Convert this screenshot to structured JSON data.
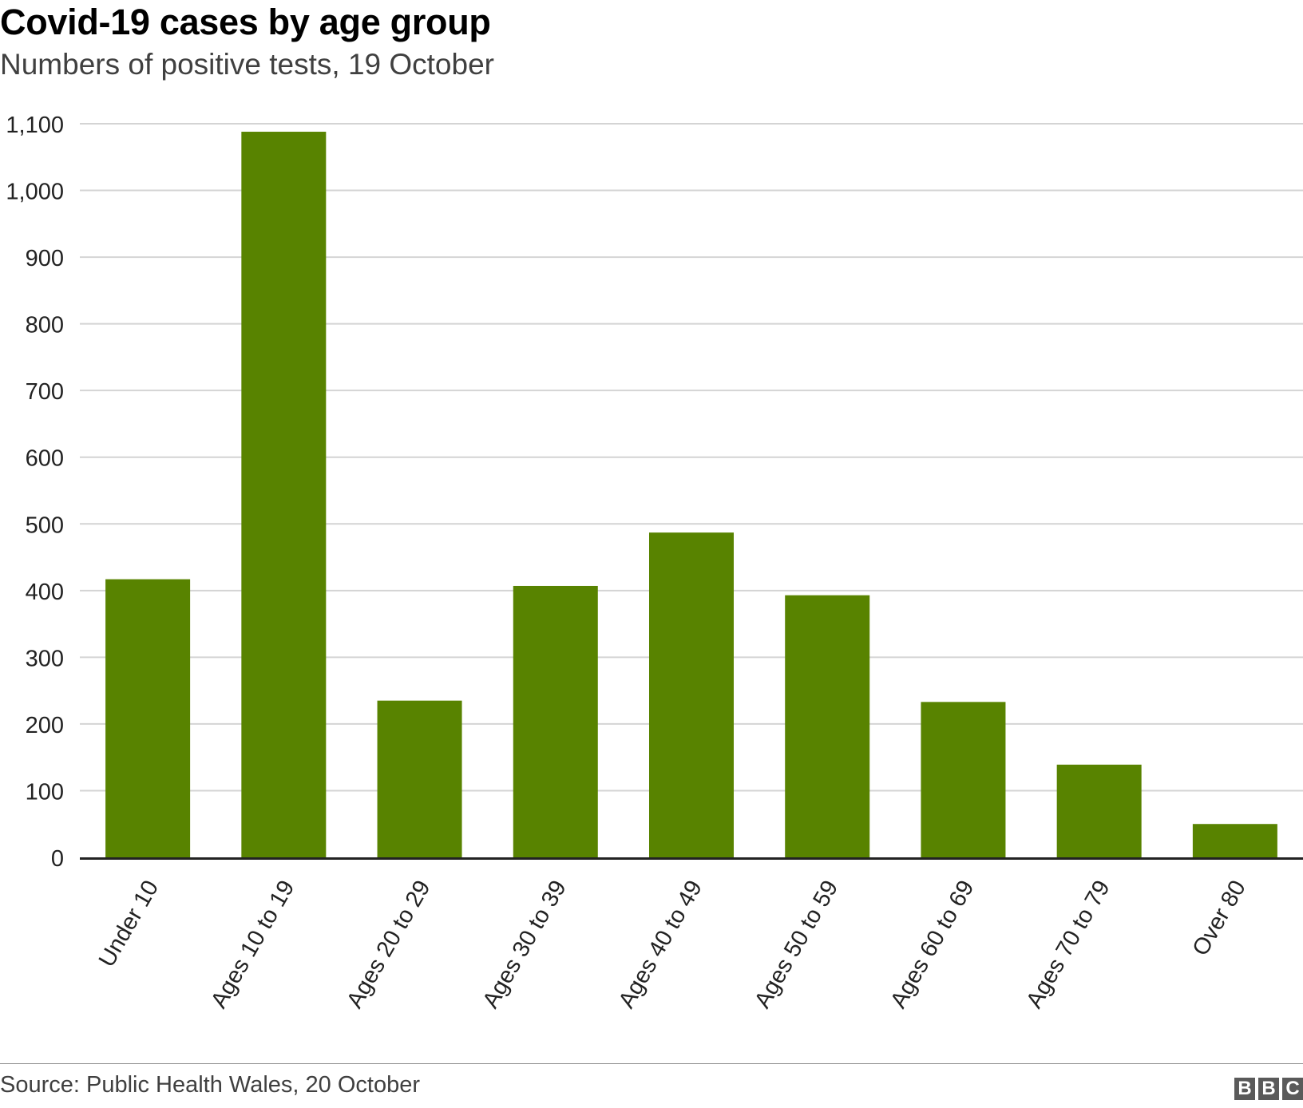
{
  "title": "Covid-19 cases by age group",
  "subtitle": "Numbers of positive tests, 19 October",
  "source": "Source: Public Health Wales, 20 October",
  "logo": [
    "B",
    "B",
    "C"
  ],
  "colors": {
    "bar": "#588300",
    "grid": "#d4d4d4",
    "axis": "#222222",
    "text": "#222222"
  },
  "chart_data": {
    "type": "bar",
    "title": "Covid-19 cases by age group",
    "subtitle": "Numbers of positive tests, 19 October",
    "xlabel": "",
    "ylabel": "",
    "categories": [
      "Under 10",
      "Ages 10 to 19",
      "Ages 20 to 29",
      "Ages 30 to 39",
      "Ages 40 to 49",
      "Ages 50 to 59",
      "Ages 60 to 69",
      "Ages 70 to 79",
      "Over 80"
    ],
    "values": [
      417,
      1088,
      235,
      407,
      487,
      393,
      233,
      139,
      50
    ],
    "ylim": [
      0,
      1100
    ],
    "yticks": [
      0,
      100,
      200,
      300,
      400,
      500,
      600,
      700,
      800,
      900,
      1000,
      1100
    ],
    "ytick_labels": [
      "0",
      "100",
      "200",
      "300",
      "400",
      "500",
      "600",
      "700",
      "800",
      "900",
      "1,000",
      "1,100"
    ],
    "grid": true,
    "legend": "none"
  }
}
